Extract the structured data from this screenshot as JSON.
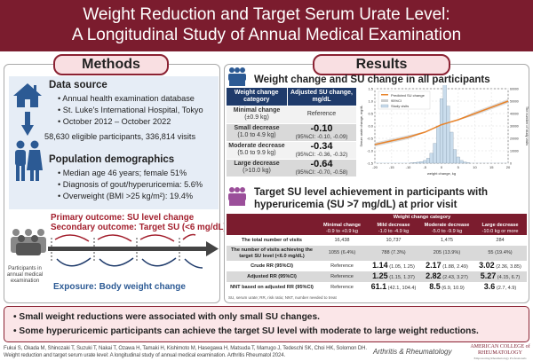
{
  "header": {
    "title_line1": "Weight Reduction and Target Serum Urate Level:",
    "title_line2": "A Longitudinal Study of Annual Medical Examination"
  },
  "methods": {
    "title": "Methods",
    "data_source": {
      "heading": "Data source",
      "items": [
        "Annual health examination database",
        "St. Luke's International Hospital, Tokyo",
        "October 2012 – October 2022"
      ]
    },
    "eligible": "58,630 eligible participants, 336,814 visits",
    "demographics": {
      "heading": "Population demographics",
      "items": [
        "Median age 46 years; female 51%",
        "Diagnosis of gout/hyperuricemia: 5.6%",
        "Overweight (BMI >25 kg/m²): 19.4%"
      ]
    },
    "primary": "Primary outcome: SU level change",
    "secondary": "Secondary outcome: Target SU (<6 mg/dL)",
    "participants_label": "Participants in annual medical examination",
    "exposure": "Exposure: Body weight change"
  },
  "results": {
    "title": "Results",
    "section1": "Weight change and SU change in all participants",
    "table1": {
      "headers": [
        "Weight change category",
        "Adjusted SU change, mg/dL"
      ],
      "rows": [
        {
          "cat": "Minimal change",
          "range": "(±0.9 kg)",
          "value": "Reference",
          "ci": ""
        },
        {
          "cat": "Small decrease",
          "range": "(1.0 to 4.9 kg)",
          "value": "-0.10",
          "ci": "(95%CI: -0.10, -0.09)"
        },
        {
          "cat": "Moderate decrease",
          "range": "(5.0 to 9.9 kg)",
          "value": "-0.34",
          "ci": "(95%CI: -0.36, -0.32)"
        },
        {
          "cat": "Large decrease",
          "range": "(>10.0 kg)",
          "value": "-0.64",
          "ci": "(95%CI: -0.70, -0.58)"
        }
      ]
    },
    "section2_line1": "Target SU level achievement in participants with",
    "section2_line2": "hyperuricemia (SU >7 mg/dL) at prior visit",
    "table2": {
      "group_header": "Weight change category",
      "cols": [
        {
          "name": "Minimal change",
          "range": "-0.9 to +0.9 kg"
        },
        {
          "name": "Mild decrease",
          "range": "-1.0 to -4.9 kg"
        },
        {
          "name": "Moderate decrease",
          "range": "-5.0 to -9.9 kg"
        },
        {
          "name": "Large decrease",
          "range": "-10.0 kg or more"
        }
      ],
      "rows": [
        {
          "label": "The total number of visits",
          "cells": [
            [
              "",
              "16,438"
            ],
            [
              "",
              "10,737"
            ],
            [
              "",
              "1,475"
            ],
            [
              "",
              "284"
            ]
          ]
        },
        {
          "label": "The number of visits achieving the target SU level (<6.0 mg/dL)",
          "cells": [
            [
              "",
              "1055 (6.4%)"
            ],
            [
              "",
              "788 (7.3%)"
            ],
            [
              "",
              "205 (13.9%)"
            ],
            [
              "",
              "55 (19.4%)"
            ]
          ]
        },
        {
          "label": "Crude RR (95%CI)",
          "cells": [
            [
              "",
              "Reference"
            ],
            [
              "1.14",
              "(1.05, 1.25)"
            ],
            [
              "2.17",
              "(1.88, 2.49)"
            ],
            [
              "3.02",
              "(2.36, 3.85)"
            ]
          ]
        },
        {
          "label": "Adjusted RR (95%CI)",
          "cells": [
            [
              "",
              "Reference"
            ],
            [
              "1.25",
              "(1.15, 1.37)"
            ],
            [
              "2.82",
              "(2.43, 3.27)"
            ],
            [
              "5.27",
              "(4.15, 6.7)"
            ]
          ]
        },
        {
          "label": "NNT based on adjusted RR (95%CI)",
          "cells": [
            [
              "",
              "Reference"
            ],
            [
              "61.1",
              "(42.1, 104.4)"
            ],
            [
              "8.5",
              "(6.9, 10.9)"
            ],
            [
              "3.6",
              "(2.7, 4.9)"
            ]
          ]
        }
      ],
      "footnote": "SU, serum urate; RR, risk ratio; NNT, number needed to treat"
    }
  },
  "chart_data": {
    "type": "line",
    "xlabel": "weight change, kg",
    "ylabel": "Serum urate change, mg/dL",
    "y2label": "The number of study visits",
    "xlim": [
      -20,
      20
    ],
    "ylim": [
      -1.5,
      1.5
    ],
    "y2lim": [
      0,
      60000
    ],
    "xticks": [
      "-20",
      "-15",
      "-10",
      "-5",
      "0",
      "5",
      "10",
      "15",
      "20"
    ],
    "yticks": [
      "-1.5",
      "-1.0",
      "-0.5",
      "0.0",
      "0.5",
      "1.0",
      "1.5"
    ],
    "y2ticks": [
      "0",
      "10000",
      "20000",
      "30000",
      "40000",
      "50000",
      "60000"
    ],
    "legend": [
      "Predicted SU change",
      "95%CI",
      "Study visits"
    ],
    "line_x": [
      -20,
      -10,
      -5,
      0,
      5,
      10,
      20
    ],
    "line_y": [
      -0.75,
      -0.45,
      -0.25,
      0.05,
      0.25,
      0.5,
      1.0
    ],
    "hist_x": [
      -9,
      -8,
      -7,
      -6,
      -5,
      -4,
      -3,
      -2,
      -1,
      0,
      1,
      2,
      3,
      4,
      5,
      6,
      7,
      8
    ],
    "hist_y": [
      300,
      500,
      800,
      1300,
      2200,
      4000,
      8000,
      16000,
      30000,
      52000,
      63000,
      46000,
      25000,
      11000,
      5000,
      2200,
      900,
      400
    ],
    "colors": {
      "line": "#e8832a",
      "ci": "#cccccc",
      "hist": "#c9dcec"
    }
  },
  "conclusions": [
    "Small weight reductions were associated with only small SU changes.",
    "Some hyperuricemic participants can achieve the target SU level with moderate to large weight reductions."
  ],
  "citation": "Fukui S, Okada M, Shinozaki T, Suzuki T, Nakai T, Ozawa H, Tamaki H, Kishimoto M, Hasegawa H, Matsuda T, Marrugo J, Tedeschi SK, Choi HK, Solomon DH. Weight reduction and target serum urate level: A longitudinal study of annual medical examination. Arthritis Rheumatol 2024.",
  "journal": "Arthritis & Rheumatology",
  "society": "AMERICAN COLLEGE of RHEUMATOLOGY",
  "society_tagline": "Empowering Rheumatology Professionals"
}
